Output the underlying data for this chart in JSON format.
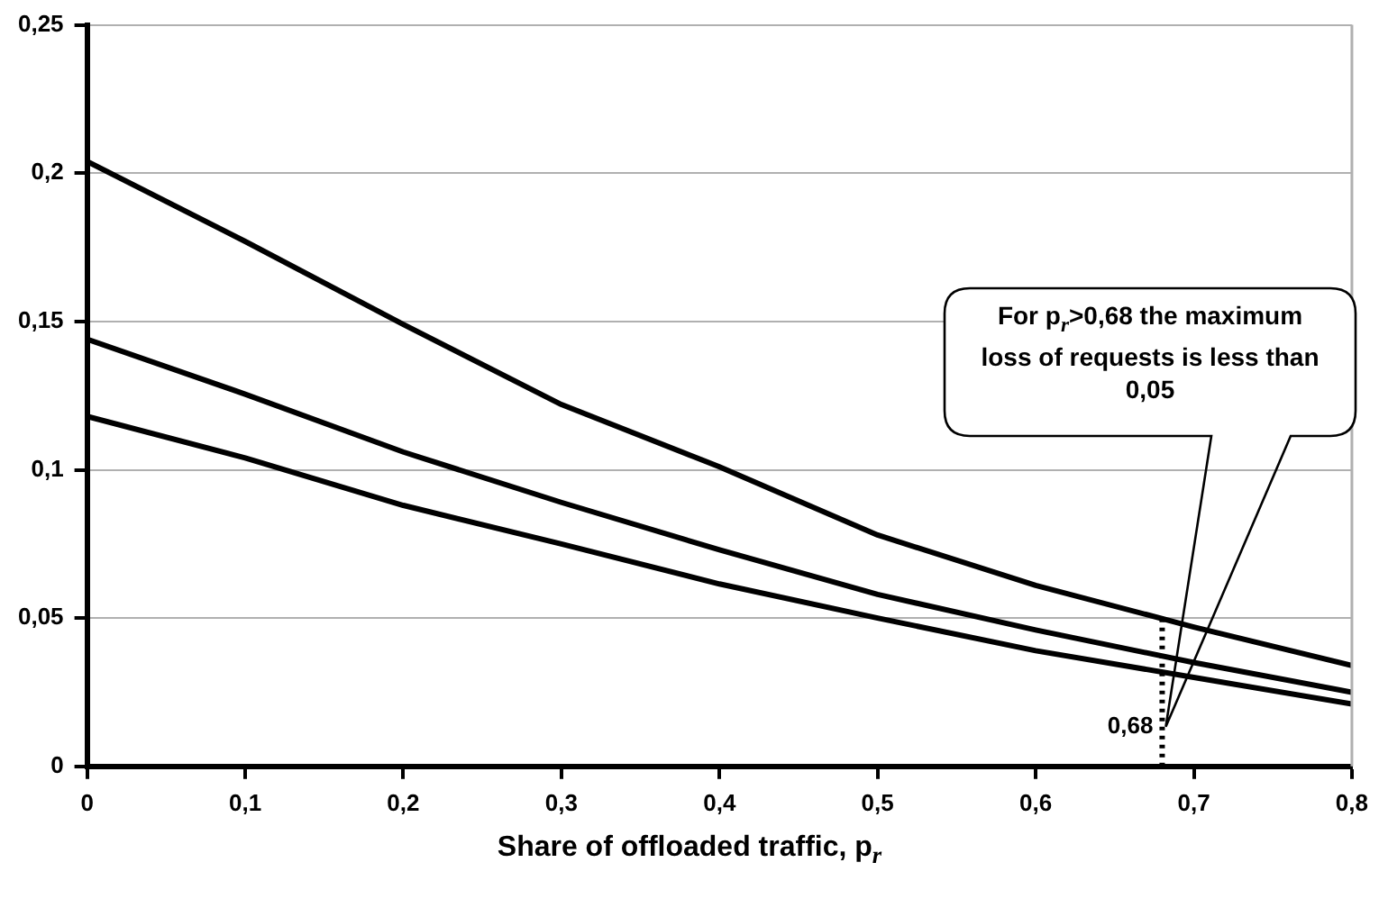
{
  "chart_data": {
    "type": "line",
    "xlabel": "Share of offloaded traffic, p$_{r}$",
    "x": [
      0,
      0.1,
      0.2,
      0.3,
      0.4,
      0.5,
      0.6,
      0.7,
      0.8
    ],
    "series": [
      {
        "color": "#000000",
        "values": [
          0.204,
          0.177,
          0.149,
          0.122,
          0.101,
          0.078,
          0.061,
          0.047,
          0.034
        ]
      },
      {
        "color": "#000000",
        "values": [
          0.144,
          0.1255,
          0.106,
          0.089,
          0.073,
          0.058,
          0.046,
          0.035,
          0.025
        ]
      },
      {
        "color": "#000000",
        "values": [
          0.118,
          0.104,
          0.088,
          0.075,
          0.0615,
          0.05,
          0.039,
          0.03,
          0.021
        ]
      }
    ],
    "xlim": [
      0,
      0.8
    ],
    "xticks": [
      0,
      {
        "value": 0.1,
        "label": "0,1"
      },
      {
        "value": 0.2,
        "label": "0,2"
      },
      {
        "value": 0.3,
        "label": "0,3"
      },
      {
        "value": 0.4,
        "label": "0,4"
      },
      {
        "value": 0.5,
        "label": "0,5"
      },
      {
        "value": 0.6,
        "label": "0,6"
      },
      {
        "value": 0.7,
        "label": "0,7"
      },
      {
        "value": 0.8,
        "label": "0,8"
      }
    ],
    "ylim": [
      0,
      0.25
    ],
    "yticks": [
      0,
      {
        "value": 0.05,
        "label": "0,05"
      },
      {
        "value": 0.1,
        "label": "0,1"
      },
      {
        "value": 0.15,
        "label": "0,15"
      },
      {
        "value": 0.2,
        "label": "0,2"
      },
      {
        "value": 0.25,
        "label": "0,25"
      }
    ],
    "grid": "y",
    "legend": false,
    "marker": "none",
    "line_style": "solid",
    "ref_lines": [
      {
        "axis": "x",
        "value": 0.68,
        "label": "0,68",
        "line_style": "dotted",
        "color": "#000000"
      }
    ],
    "annotations": [
      "For p$_{r}$>0,68 the maximum loss of requests is less than 0,05"
    ]
  }
}
